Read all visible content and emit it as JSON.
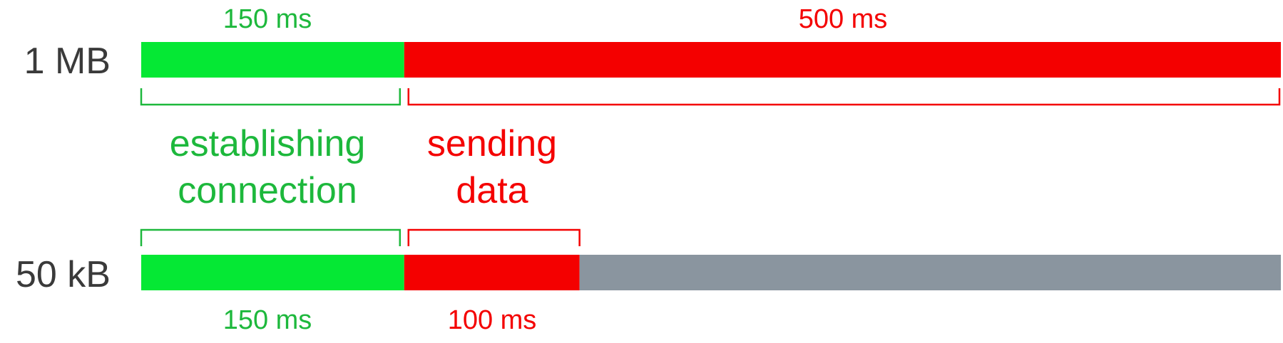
{
  "rows": [
    {
      "label": "1 MB",
      "connect_ms": 150,
      "send_ms": 500,
      "idle_ms": 0,
      "connect_label": "150 ms",
      "send_label": "500 ms"
    },
    {
      "label": "50 kB",
      "connect_ms": 150,
      "send_ms": 100,
      "idle_ms": 400,
      "connect_label": "150 ms",
      "send_label": "100 ms"
    }
  ],
  "phases": {
    "connect": {
      "line1": "establishing",
      "line2": "connection"
    },
    "send": {
      "line1": "sending",
      "line2": "data"
    }
  },
  "colors": {
    "connect_bar": "#05e834",
    "connect_text": "#1db83c",
    "send": "#f40000",
    "idle": "#8a959f",
    "label": "#3a3a3a"
  }
}
